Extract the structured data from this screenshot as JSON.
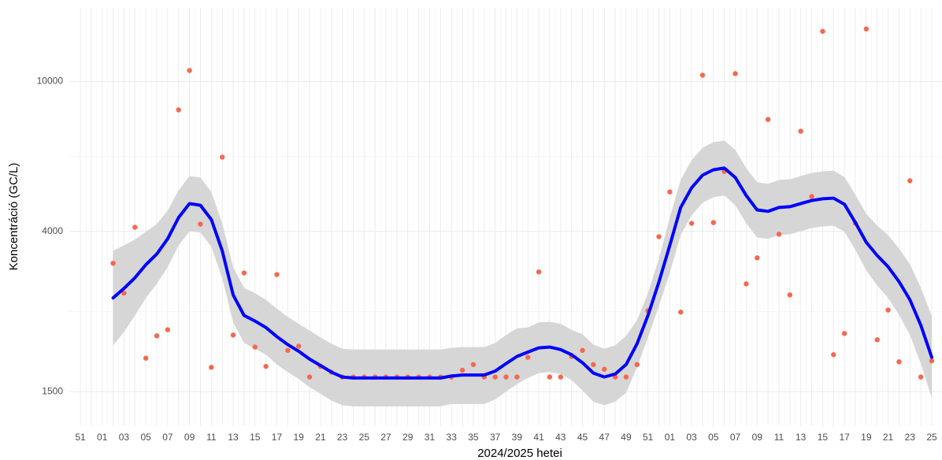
{
  "chart_data": {
    "type": "line",
    "x_label": "2024/2025 hetei",
    "y_label": "Koncentráció (GC/L)",
    "yscale": "log",
    "grid": true,
    "ylim": [
      1220,
      15700
    ],
    "yticks": [
      1500,
      4000,
      10000
    ],
    "categories": [
      "51",
      null,
      "01",
      null,
      "03",
      null,
      "05",
      null,
      "07",
      null,
      "09",
      null,
      "11",
      null,
      "13",
      null,
      "15",
      null,
      "17",
      null,
      "19",
      null,
      "21",
      null,
      "23",
      null,
      "25",
      null,
      "27",
      null,
      "29",
      null,
      "31",
      null,
      "33",
      null,
      "35",
      null,
      "37",
      null,
      "39",
      null,
      "41",
      null,
      "43",
      null,
      "45",
      null,
      "47",
      null,
      "49",
      null,
      "51",
      null,
      "01",
      null,
      "03",
      null,
      "05",
      null,
      "07",
      null,
      "09",
      null,
      "11",
      null,
      "13",
      null,
      "15",
      null,
      "17",
      null,
      "19",
      null,
      "21",
      null,
      "23",
      null,
      "25"
    ],
    "layers": [
      {
        "type": "ribbon",
        "color": "#d6d6d6",
        "upper": [
          null,
          null,
          null,
          3550,
          3670,
          3800,
          3990,
          4180,
          4540,
          5140,
          5610,
          5560,
          5090,
          4200,
          3210,
          2830,
          2740,
          2630,
          2490,
          2370,
          2270,
          2180,
          2090,
          2010,
          1950,
          1940,
          1940,
          1940,
          1940,
          1940,
          1940,
          1940,
          1940,
          1940,
          1960,
          1970,
          1970,
          1970,
          2020,
          2120,
          2210,
          2220,
          2290,
          2300,
          2270,
          2190,
          2130,
          2000,
          1950,
          1990,
          2110,
          2320,
          2740,
          3380,
          4350,
          5480,
          6180,
          6670,
          6900,
          6970,
          6580,
          5890,
          5400,
          5350,
          5480,
          5500,
          5610,
          5720,
          5770,
          5800,
          5580,
          5000,
          4450,
          4140,
          3910,
          3600,
          3270,
          2830,
          2380
        ],
        "lower": [
          null,
          null,
          null,
          1990,
          2160,
          2390,
          2660,
          2900,
          3210,
          3670,
          4000,
          3970,
          3640,
          3000,
          2290,
          2020,
          1950,
          1880,
          1770,
          1690,
          1620,
          1540,
          1480,
          1420,
          1380,
          1370,
          1370,
          1370,
          1370,
          1370,
          1370,
          1370,
          1370,
          1370,
          1390,
          1390,
          1390,
          1390,
          1430,
          1500,
          1570,
          1630,
          1680,
          1690,
          1670,
          1610,
          1510,
          1410,
          1380,
          1410,
          1490,
          1740,
          2090,
          2530,
          3100,
          3910,
          4410,
          4760,
          4930,
          4980,
          4690,
          4200,
          3850,
          3820,
          3910,
          3930,
          4000,
          4080,
          4120,
          4140,
          3990,
          3570,
          3150,
          2870,
          2660,
          2400,
          2120,
          1780,
          1440
        ]
      },
      {
        "type": "scatter",
        "color": "#f8674f",
        "values": [
          null,
          null,
          null,
          3290,
          2740,
          4100,
          1840,
          2110,
          2190,
          8410,
          10700,
          4180,
          1740,
          6300,
          2120,
          3100,
          1970,
          1750,
          3070,
          1930,
          1980,
          1640,
          1750,
          1690,
          1640,
          1640,
          1640,
          1640,
          1640,
          1640,
          1640,
          1640,
          1640,
          1640,
          1640,
          1710,
          1770,
          1640,
          1640,
          1640,
          1640,
          1850,
          3120,
          1640,
          1640,
          1860,
          1930,
          1770,
          1720,
          1640,
          1640,
          1770,
          2460,
          3870,
          5090,
          2440,
          4200,
          10400,
          4220,
          5770,
          10500,
          2900,
          3400,
          7930,
          3930,
          2710,
          7380,
          4950,
          13600,
          1880,
          2140,
          4200,
          13800,
          2060,
          2470,
          1800,
          5450,
          1640,
          1810
        ]
      },
      {
        "type": "line",
        "color": "#0000ff",
        "values": [
          null,
          null,
          null,
          2660,
          2820,
          3010,
          3260,
          3480,
          3820,
          4350,
          4740,
          4690,
          4300,
          3550,
          2710,
          2390,
          2310,
          2220,
          2100,
          2000,
          1920,
          1830,
          1760,
          1690,
          1640,
          1630,
          1630,
          1630,
          1630,
          1630,
          1630,
          1630,
          1630,
          1630,
          1650,
          1660,
          1660,
          1660,
          1700,
          1780,
          1860,
          1910,
          1960,
          1970,
          1940,
          1880,
          1790,
          1680,
          1640,
          1670,
          1770,
          2010,
          2390,
          2930,
          3670,
          4630,
          5220,
          5640,
          5830,
          5890,
          5560,
          4980,
          4560,
          4520,
          4630,
          4650,
          4740,
          4830,
          4880,
          4900,
          4720,
          4220,
          3740,
          3450,
          3220,
          2940,
          2630,
          2250,
          1850
        ]
      }
    ]
  }
}
